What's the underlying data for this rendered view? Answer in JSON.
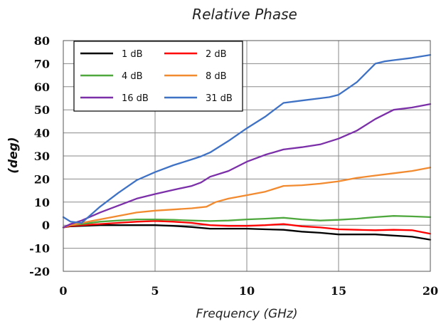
{
  "chart_data": {
    "type": "line",
    "title": "Relative Phase",
    "xlabel": "Frequency (GHz)",
    "ylabel": "(deg)",
    "xlim": [
      0,
      20
    ],
    "ylim": [
      -20,
      80
    ],
    "xticks": [
      "0",
      "5",
      "10",
      "15",
      "20"
    ],
    "yticks": [
      "-20",
      "-10",
      "0",
      "10",
      "20",
      "30",
      "40",
      "50",
      "60",
      "70",
      "80"
    ],
    "grid": true,
    "legend_position": "top-left",
    "series": [
      {
        "name": "1 dB",
        "color": "#000000",
        "x": [
          0,
          0.4,
          1,
          2,
          3,
          4,
          5,
          6,
          7,
          8,
          9,
          10,
          11,
          12,
          13,
          14,
          15,
          16,
          17,
          18,
          19,
          20
        ],
        "y": [
          -1,
          -0.5,
          -0.3,
          0,
          0,
          0,
          0,
          -0.3,
          -0.8,
          -1.5,
          -1.5,
          -1.5,
          -1.8,
          -2,
          -2.8,
          -3.3,
          -4,
          -4,
          -4,
          -4.5,
          -5,
          -6.3
        ]
      },
      {
        "name": "2 dB",
        "color": "#ff0000",
        "x": [
          0,
          0.4,
          1,
          2,
          3,
          4,
          5,
          6,
          7,
          8,
          9,
          10,
          11,
          12,
          13,
          14,
          15,
          16,
          17,
          18,
          19,
          20
        ],
        "y": [
          -1,
          -0.3,
          0,
          0.5,
          1,
          1.5,
          1.8,
          1.5,
          1,
          0,
          -0.3,
          -0.3,
          0,
          0.5,
          -0.5,
          -1,
          -1.8,
          -2,
          -2.2,
          -2,
          -2.2,
          -3.7
        ]
      },
      {
        "name": "4 dB",
        "color": "#4fa83d",
        "x": [
          0,
          0.4,
          1,
          2,
          3,
          4,
          5,
          6,
          7,
          8,
          9,
          10,
          11,
          12,
          13,
          14,
          15,
          16,
          17,
          18,
          19,
          20
        ],
        "y": [
          -1,
          0,
          0.5,
          1.5,
          2,
          2.5,
          2.5,
          2.3,
          2,
          1.8,
          2,
          2.5,
          2.8,
          3.2,
          2.5,
          2,
          2.3,
          2.8,
          3.5,
          4,
          3.8,
          3.5
        ]
      },
      {
        "name": "8 dB",
        "color": "#f28a30",
        "x": [
          0,
          0.4,
          1,
          2,
          3,
          4,
          5,
          6,
          7,
          7.8,
          8.3,
          9,
          10,
          11,
          12,
          13,
          14,
          15,
          16,
          17,
          18,
          19,
          20
        ],
        "y": [
          -1,
          0,
          1,
          2.5,
          4,
          5.5,
          6.3,
          6.8,
          7.3,
          8,
          10,
          11.5,
          13,
          14.5,
          17,
          17.3,
          18,
          19,
          20.5,
          21.5,
          22.5,
          23.5,
          25
        ]
      },
      {
        "name": "16 dB",
        "color": "#7b2fa8",
        "x": [
          0,
          0.4,
          1,
          2,
          3,
          4,
          5,
          6,
          7,
          7.5,
          8,
          9,
          10,
          11,
          12,
          13,
          14,
          15,
          16,
          17,
          18,
          19,
          20
        ],
        "y": [
          -1,
          0.5,
          2,
          5.5,
          8.5,
          11.5,
          13.5,
          15.3,
          17,
          18.5,
          21,
          23.5,
          27.5,
          30.5,
          32.8,
          33.8,
          35,
          37.5,
          41,
          46,
          50,
          51,
          52.5
        ]
      },
      {
        "name": "31 dB",
        "color": "#3f72c4",
        "x": [
          0,
          0.4,
          1,
          2,
          3,
          4,
          5,
          6,
          7,
          7.5,
          8,
          9,
          10,
          11,
          12,
          13,
          14,
          14.5,
          15,
          16,
          17,
          17.5,
          18,
          19,
          20
        ],
        "y": [
          3.5,
          1.5,
          1,
          8,
          14,
          19.5,
          23,
          26,
          28.5,
          29.8,
          31.5,
          36.5,
          42,
          47,
          53,
          54,
          55,
          55.5,
          56.5,
          62,
          70,
          71,
          71.5,
          72.5,
          73.8
        ]
      }
    ]
  }
}
